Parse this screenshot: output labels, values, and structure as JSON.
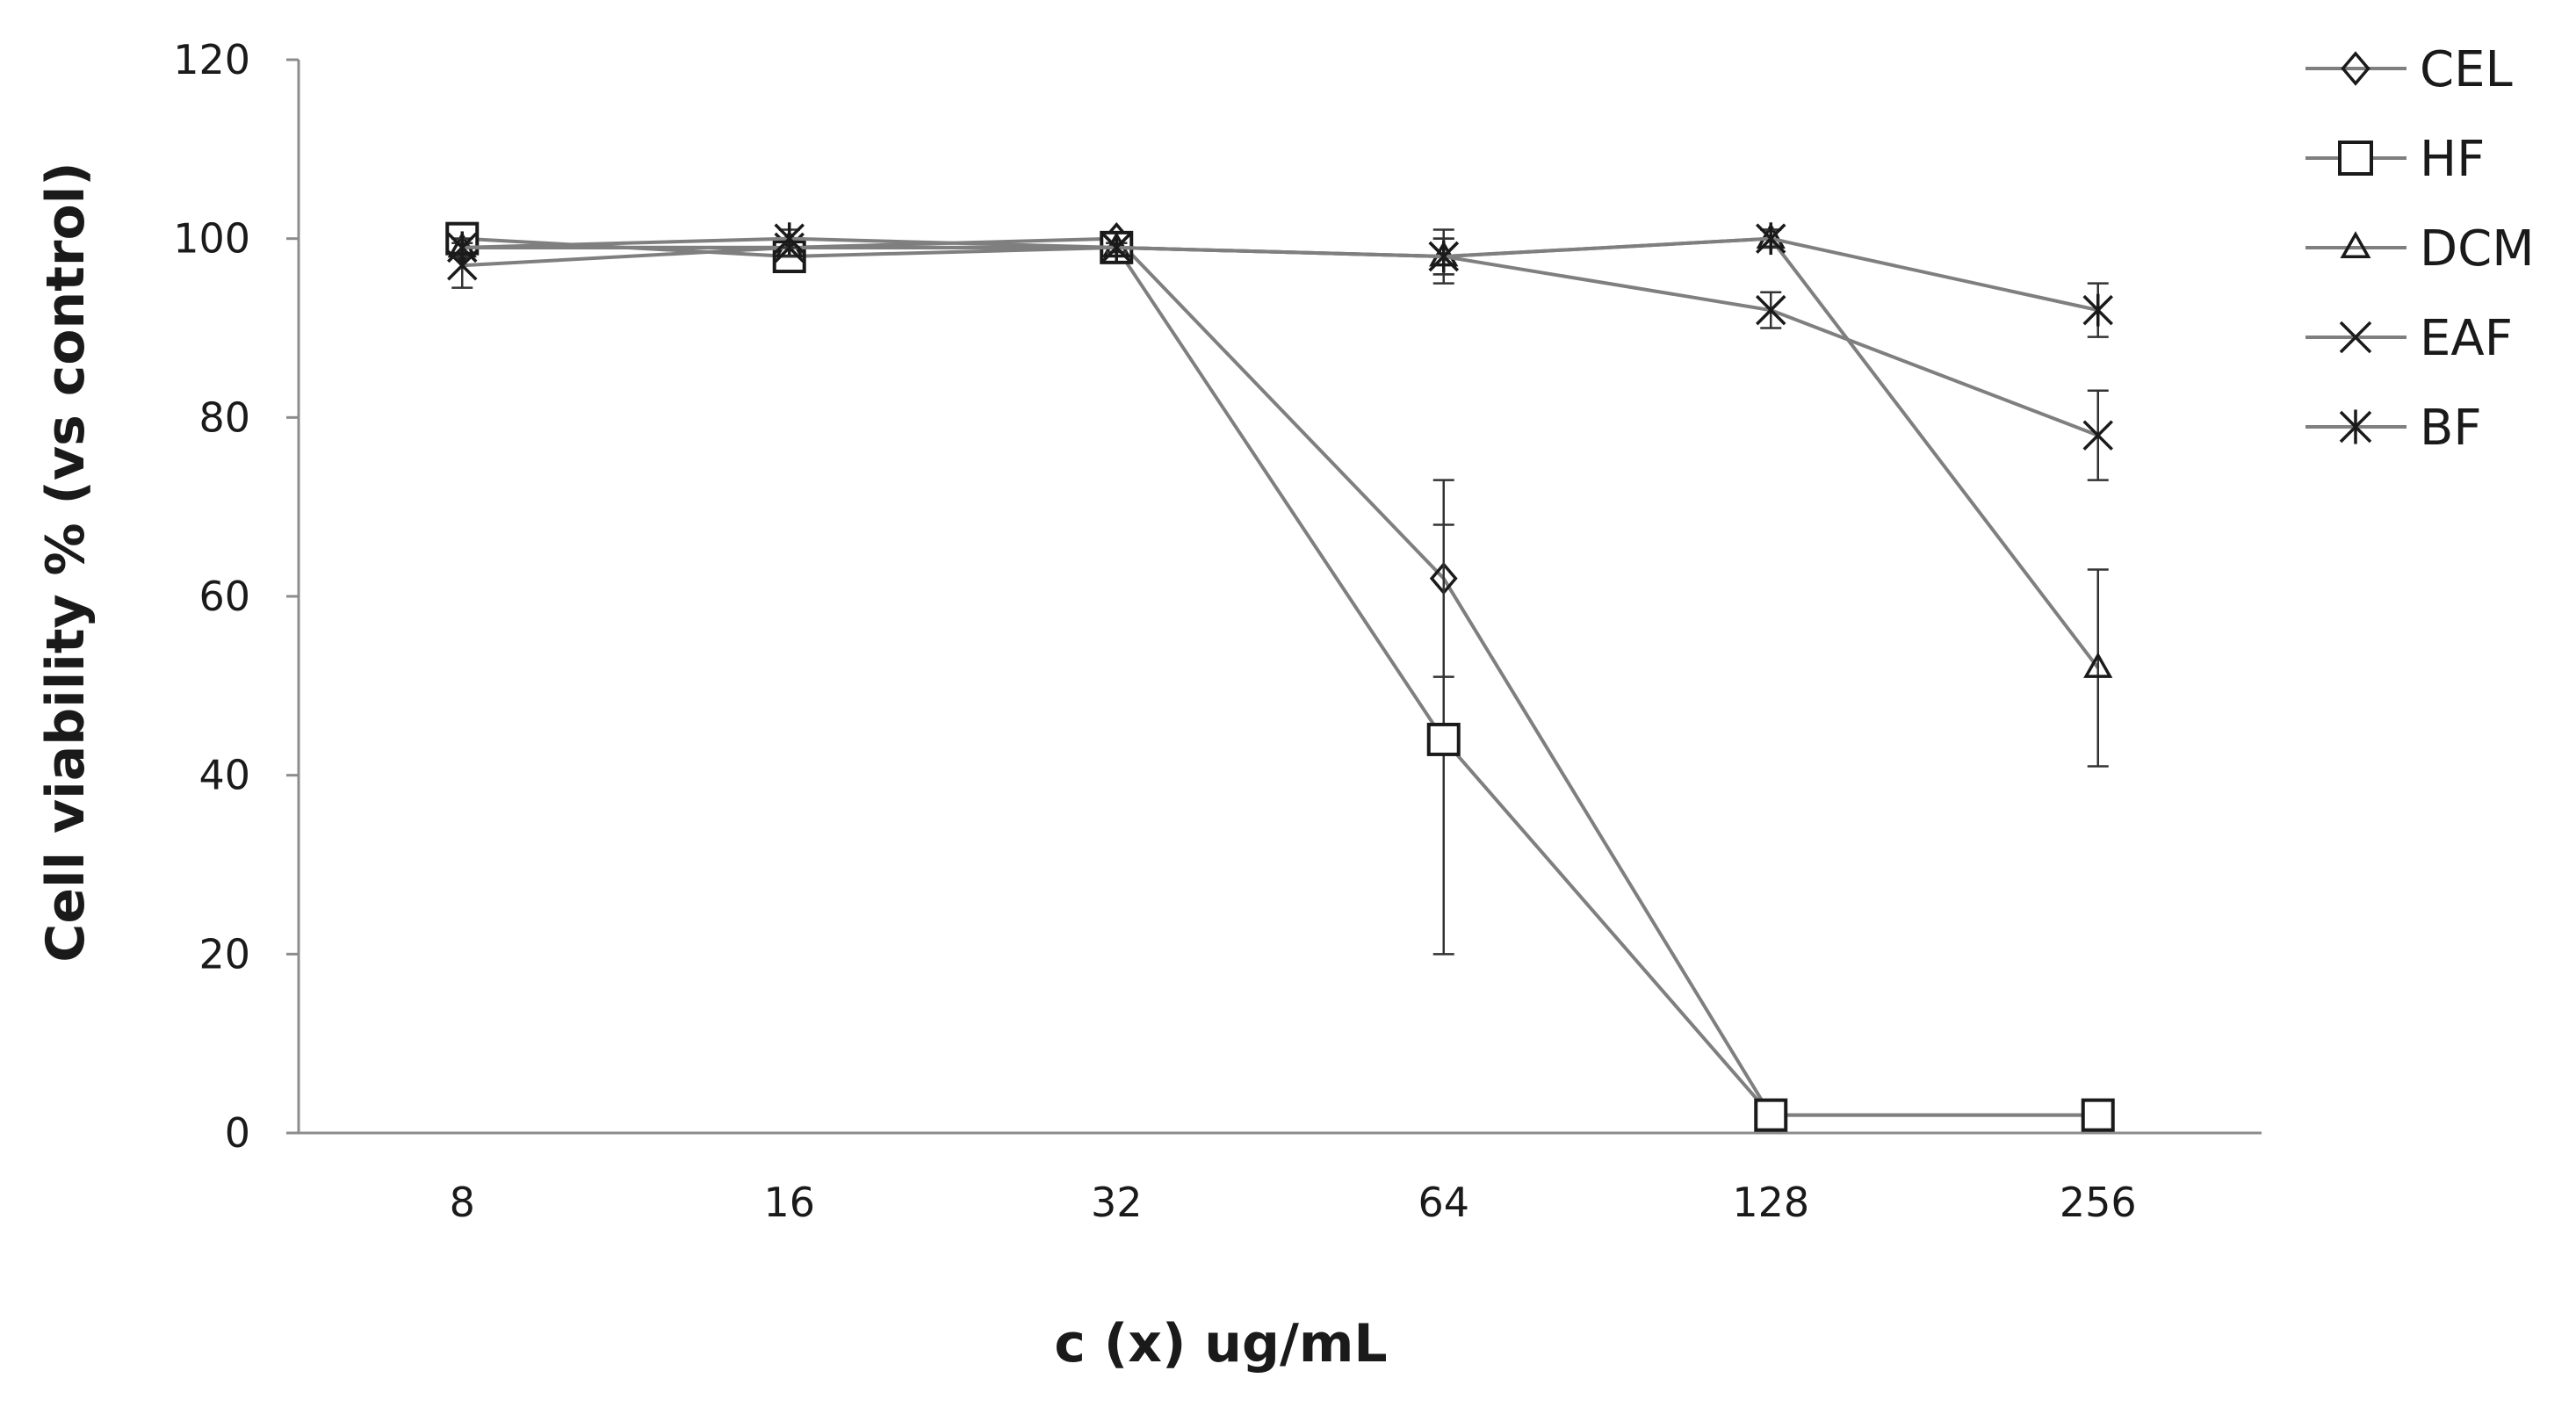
{
  "chart_data": {
    "type": "line",
    "categories": [
      "8",
      "16",
      "32",
      "64",
      "128",
      "256"
    ],
    "xlabel": "c (x) ug/mL",
    "ylabel": "Cell viability % (vs control)",
    "ylim": [
      0,
      120
    ],
    "yticks": [
      "0",
      "20",
      "40",
      "60",
      "80",
      "100",
      "120"
    ],
    "grid": false,
    "legend_position": "right",
    "line_color": "#7f7f7f",
    "marker_color": "#1a1a1a",
    "series": [
      {
        "name": "CEL",
        "marker": "diamond",
        "values": [
          99,
          99,
          100,
          62,
          2,
          2
        ],
        "errors": [
          1,
          1,
          0.5,
          11,
          1,
          1
        ]
      },
      {
        "name": "HF",
        "marker": "square",
        "values": [
          100,
          98,
          99,
          44,
          2,
          2
        ],
        "errors": [
          1,
          1,
          0.5,
          24,
          1,
          1
        ]
      },
      {
        "name": "DCM",
        "marker": "triangle",
        "values": [
          99,
          99,
          99,
          98,
          100,
          52
        ],
        "errors": [
          1,
          1,
          0.5,
          2,
          1,
          11
        ]
      },
      {
        "name": "EAF",
        "marker": "x",
        "values": [
          97,
          99,
          99,
          98,
          92,
          78
        ],
        "errors": [
          2.5,
          1,
          0.5,
          2,
          2,
          5
        ]
      },
      {
        "name": "BF",
        "marker": "star",
        "values": [
          99,
          100,
          99,
          98,
          100,
          92
        ],
        "errors": [
          1,
          1,
          0.5,
          3,
          1,
          3
        ]
      }
    ]
  }
}
